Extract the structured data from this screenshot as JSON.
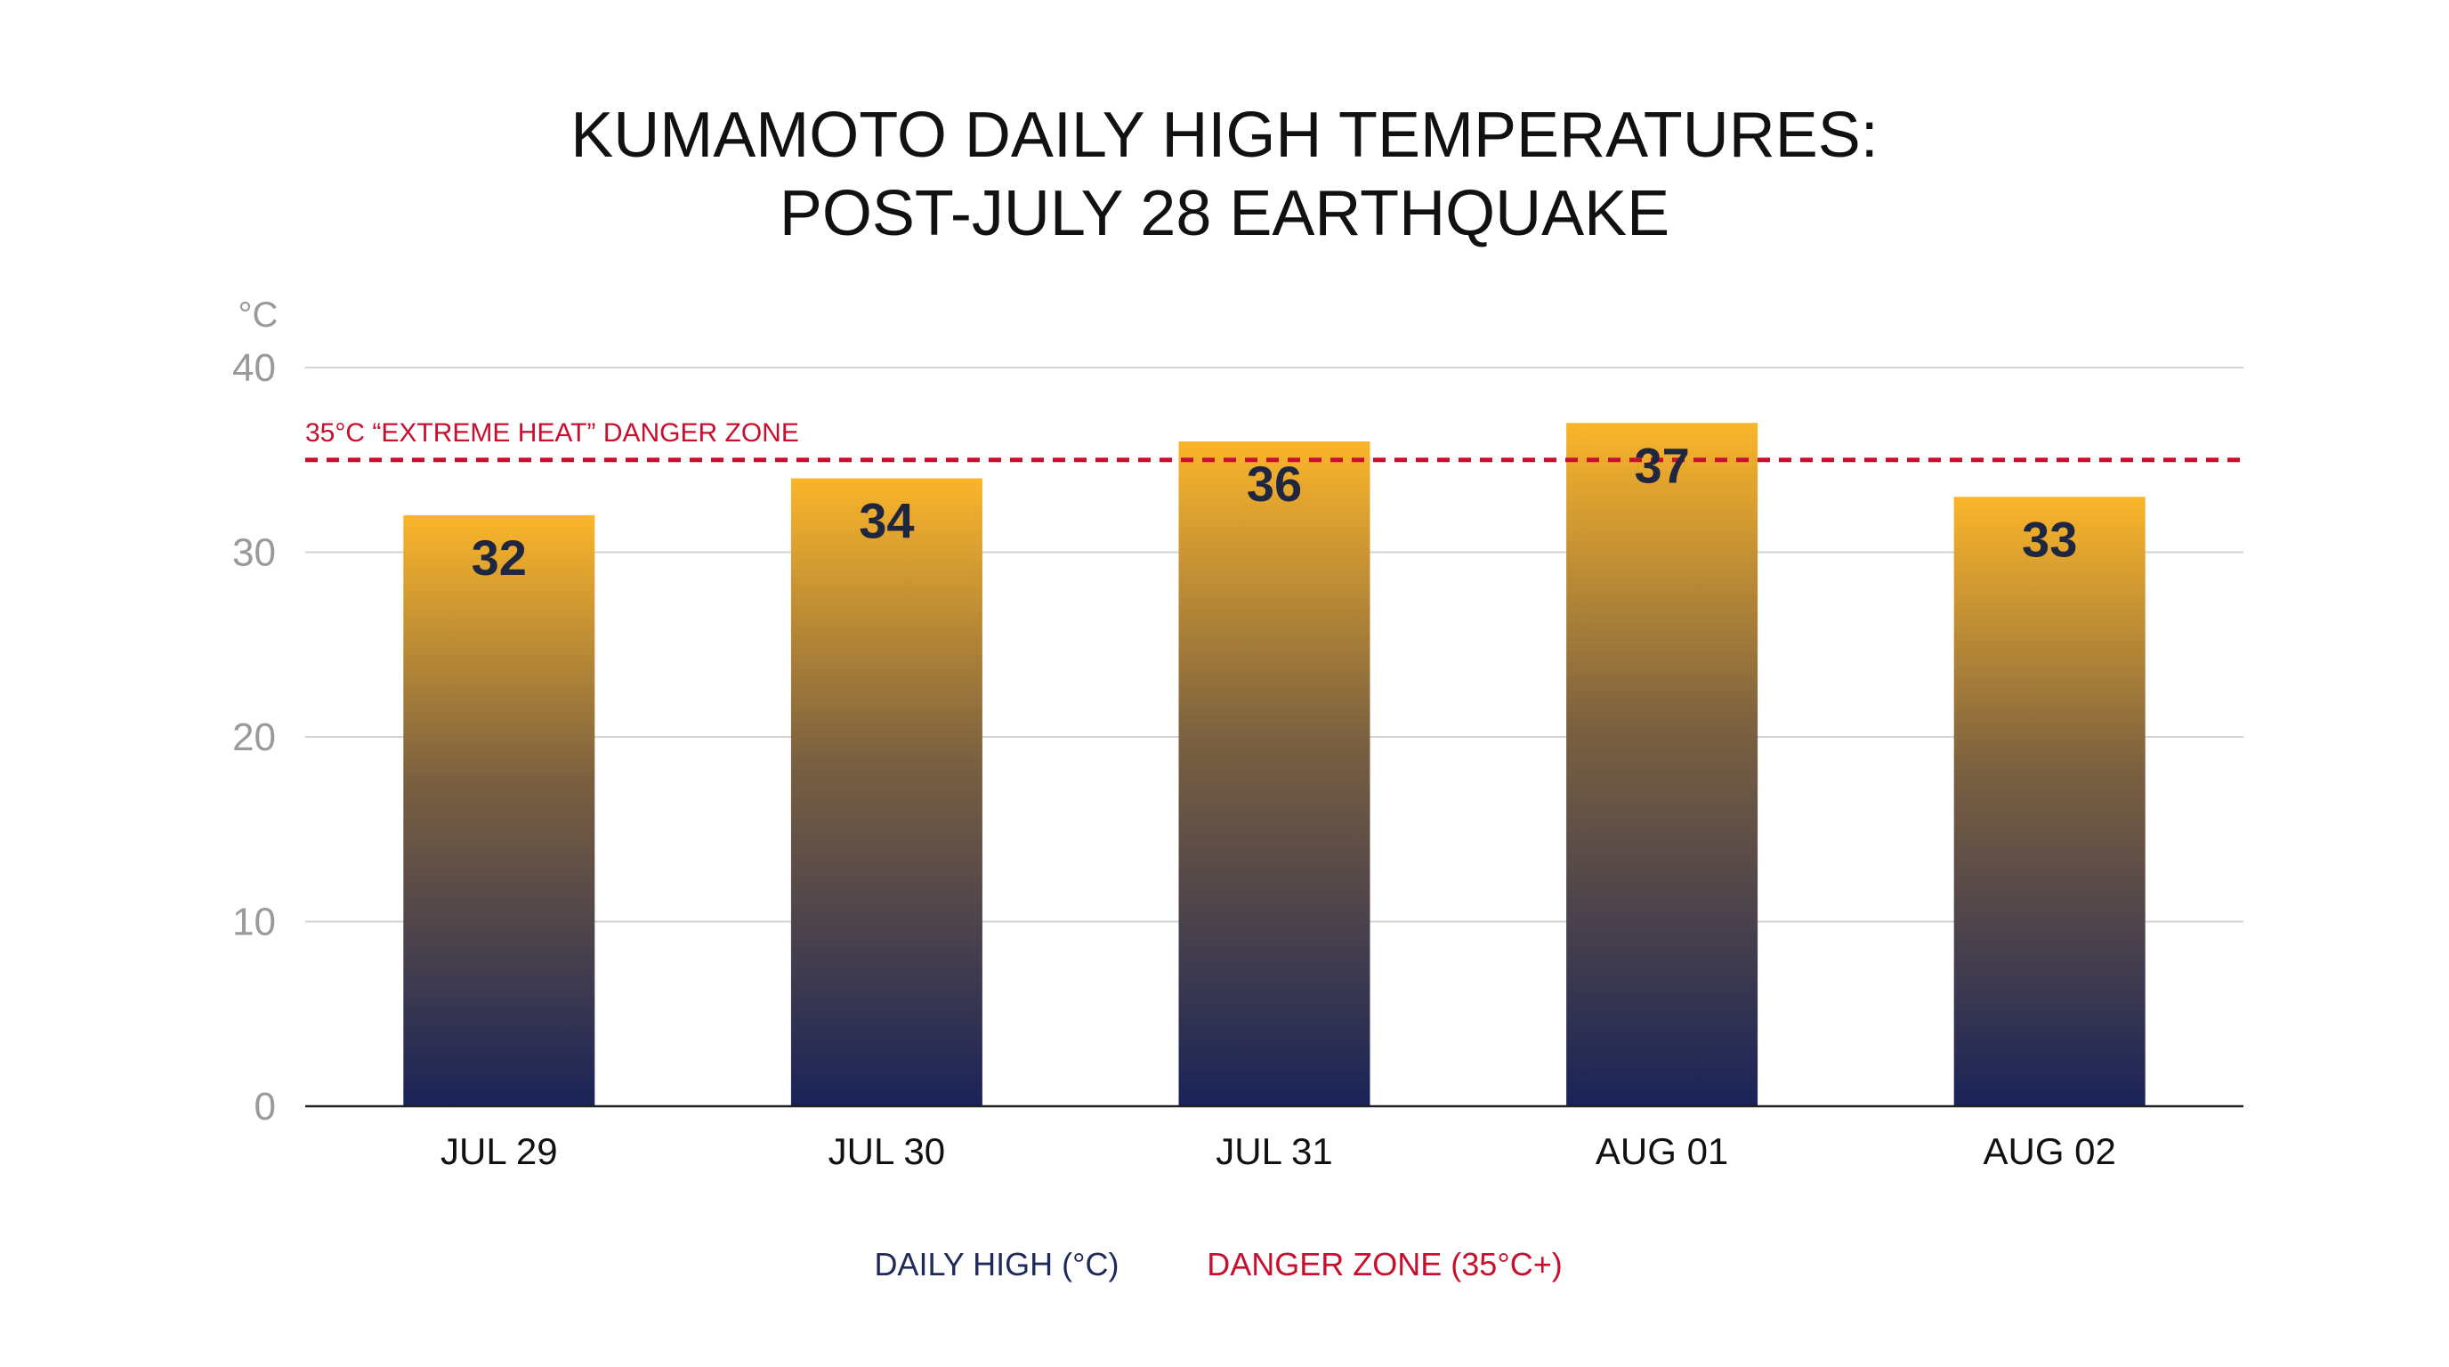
{
  "chart_data": {
    "type": "bar",
    "title_lines": [
      "KUMAMOTO DAILY HIGH TEMPERATURES:",
      "POST-JULY 28 EARTHQUAKE"
    ],
    "y_unit": "°C",
    "categories": [
      "JUL 29",
      "JUL 30",
      "JUL 31",
      "AUG 01",
      "AUG 02"
    ],
    "values": [
      32,
      34,
      36,
      37,
      33
    ],
    "ylim": [
      0,
      40
    ],
    "yticks": [
      0,
      10,
      20,
      30,
      40
    ],
    "grid": true,
    "reference_line": {
      "value": 35,
      "label": "35°C “EXTREME HEAT” DANGER ZONE",
      "color": "#c8102e"
    },
    "bar_gradient": {
      "top_color": "#fbb52a",
      "bottom_color": "#1a2358"
    },
    "legend": {
      "placement": "bottom-center",
      "entries": [
        {
          "label": "DAILY HIGH (°C)",
          "color": "#1f2a5c"
        },
        {
          "label": "DANGER ZONE (35°C+)",
          "color": "#c8102e"
        }
      ]
    }
  }
}
